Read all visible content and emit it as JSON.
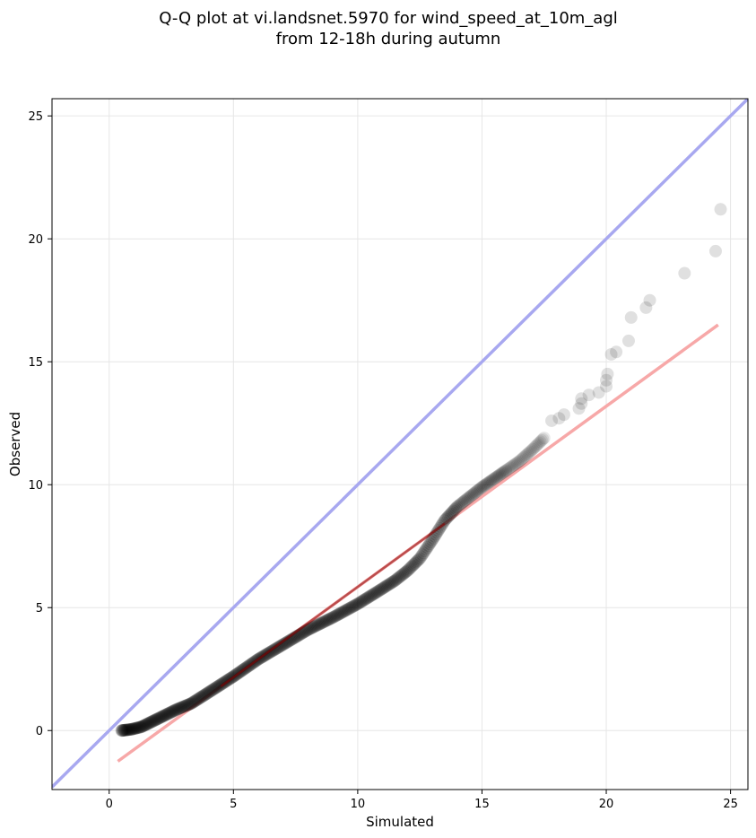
{
  "chart_data": {
    "type": "scatter",
    "title_line1": "Q-Q plot at vi.landsnet.5970 for wind_speed_at_10m_agl",
    "title_line2": "from 12-18h during autumn",
    "xlabel": "Simulated",
    "ylabel": "Observed",
    "xlim": [
      -2.3,
      25.7
    ],
    "ylim": [
      -2.4,
      25.7
    ],
    "xticks": [
      0,
      5,
      10,
      15,
      20,
      25
    ],
    "yticks": [
      0,
      5,
      10,
      15,
      20,
      25
    ],
    "xtick_labels": [
      "0",
      "5",
      "10",
      "15",
      "20",
      "25"
    ],
    "ytick_labels": [
      "0",
      "5",
      "10",
      "15",
      "20",
      "25"
    ],
    "grid": true,
    "colors": {
      "points": "#000000",
      "identity_line": "#a8a8f0",
      "fit_line": "#f7a8a8",
      "fit_line_dense": "#8b0000"
    },
    "identity_line": {
      "x": [
        -2.3,
        25.7
      ],
      "y": [
        -2.3,
        25.7
      ]
    },
    "fit_line": {
      "x": [
        0.35,
        24.5
      ],
      "y": [
        -1.25,
        16.5
      ]
    },
    "qq_curve": {
      "x": [
        0.5,
        0.9,
        1.3,
        1.7,
        2.2,
        2.7,
        3.3,
        4.0,
        5.0,
        6.0,
        7.0,
        8.0,
        9.0,
        10.0,
        10.8,
        11.5,
        12.0,
        12.5,
        13.0,
        13.5,
        14.0,
        14.5,
        15.0,
        15.5,
        16.0,
        16.5,
        17.0,
        17.5
      ],
      "y": [
        0.0,
        0.05,
        0.15,
        0.35,
        0.6,
        0.85,
        1.1,
        1.55,
        2.2,
        2.9,
        3.5,
        4.1,
        4.6,
        5.15,
        5.65,
        6.1,
        6.5,
        7.0,
        7.75,
        8.55,
        9.1,
        9.5,
        9.9,
        10.25,
        10.6,
        10.95,
        11.4,
        11.9
      ]
    },
    "tail_points": [
      {
        "x": 17.8,
        "y": 12.6
      },
      {
        "x": 18.1,
        "y": 12.7
      },
      {
        "x": 18.3,
        "y": 12.85
      },
      {
        "x": 18.9,
        "y": 13.1
      },
      {
        "x": 19.0,
        "y": 13.3
      },
      {
        "x": 19.0,
        "y": 13.5
      },
      {
        "x": 19.3,
        "y": 13.65
      },
      {
        "x": 19.7,
        "y": 13.75
      },
      {
        "x": 20.0,
        "y": 14.0
      },
      {
        "x": 20.0,
        "y": 14.25
      },
      {
        "x": 20.05,
        "y": 14.5
      },
      {
        "x": 20.2,
        "y": 15.3
      },
      {
        "x": 20.4,
        "y": 15.4
      },
      {
        "x": 20.9,
        "y": 15.85
      },
      {
        "x": 21.0,
        "y": 16.8
      },
      {
        "x": 21.6,
        "y": 17.2
      },
      {
        "x": 21.75,
        "y": 17.5
      },
      {
        "x": 23.15,
        "y": 18.6
      },
      {
        "x": 24.4,
        "y": 19.5
      },
      {
        "x": 24.6,
        "y": 21.2
      }
    ],
    "dense_points": 380
  }
}
